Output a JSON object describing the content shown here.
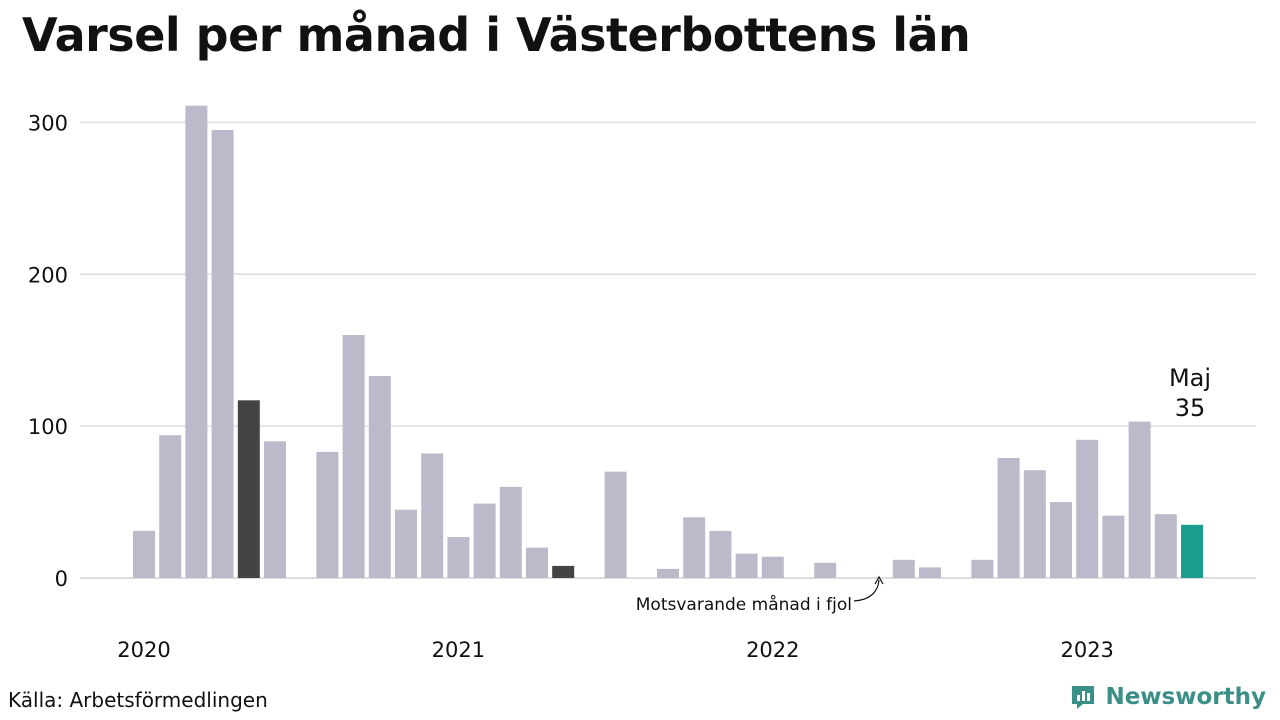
{
  "title": "Varsel per månad i Västerbottens län",
  "source": "Källa: Arbetsförmedlingen",
  "brand": {
    "name": "Newsworthy",
    "icon": "newsworthy-logo-icon",
    "color": "#3a8f86"
  },
  "annotation": "Motsvarande månad i fjol",
  "highlight": {
    "month": "Maj",
    "value": "35"
  },
  "colors": {
    "bar": "#bcbaca",
    "previous_year": "#444444",
    "current": "#1a9e8f",
    "grid": "#dddddd"
  },
  "chart_data": {
    "type": "bar",
    "ylim": [
      0,
      330
    ],
    "yticks": [
      0,
      100,
      200,
      300
    ],
    "year_labels": [
      {
        "label": "2020",
        "month_index": 0
      },
      {
        "label": "2021",
        "month_index": 12
      },
      {
        "label": "2022",
        "month_index": 24
      },
      {
        "label": "2023",
        "month_index": 36
      }
    ],
    "bars": [
      {
        "month_index": 0,
        "value": 31,
        "style": "normal"
      },
      {
        "month_index": 1,
        "value": 94,
        "style": "normal"
      },
      {
        "month_index": 2,
        "value": 311,
        "style": "normal"
      },
      {
        "month_index": 3,
        "value": 295,
        "style": "normal"
      },
      {
        "month_index": 4,
        "value": 117,
        "style": "previous_year"
      },
      {
        "month_index": 5,
        "value": 90,
        "style": "normal"
      },
      {
        "month_index": 7,
        "value": 83,
        "style": "normal"
      },
      {
        "month_index": 8,
        "value": 160,
        "style": "normal"
      },
      {
        "month_index": 9,
        "value": 133,
        "style": "normal"
      },
      {
        "month_index": 10,
        "value": 45,
        "style": "normal"
      },
      {
        "month_index": 11,
        "value": 82,
        "style": "normal"
      },
      {
        "month_index": 12,
        "value": 27,
        "style": "normal"
      },
      {
        "month_index": 13,
        "value": 49,
        "style": "normal"
      },
      {
        "month_index": 14,
        "value": 60,
        "style": "normal"
      },
      {
        "month_index": 15,
        "value": 20,
        "style": "normal"
      },
      {
        "month_index": 16,
        "value": 8,
        "style": "previous_year"
      },
      {
        "month_index": 18,
        "value": 70,
        "style": "normal"
      },
      {
        "month_index": 20,
        "value": 6,
        "style": "normal"
      },
      {
        "month_index": 21,
        "value": 40,
        "style": "normal"
      },
      {
        "month_index": 22,
        "value": 31,
        "style": "normal"
      },
      {
        "month_index": 23,
        "value": 16,
        "style": "normal"
      },
      {
        "month_index": 24,
        "value": 14,
        "style": "normal"
      },
      {
        "month_index": 26,
        "value": 10,
        "style": "normal"
      },
      {
        "month_index": 28,
        "value": 0,
        "style": "previous_year"
      },
      {
        "month_index": 29,
        "value": 12,
        "style": "normal"
      },
      {
        "month_index": 30,
        "value": 7,
        "style": "normal"
      },
      {
        "month_index": 32,
        "value": 12,
        "style": "normal"
      },
      {
        "month_index": 33,
        "value": 79,
        "style": "normal"
      },
      {
        "month_index": 34,
        "value": 71,
        "style": "normal"
      },
      {
        "month_index": 35,
        "value": 50,
        "style": "normal"
      },
      {
        "month_index": 36,
        "value": 91,
        "style": "normal"
      },
      {
        "month_index": 37,
        "value": 41,
        "style": "normal"
      },
      {
        "month_index": 38,
        "value": 103,
        "style": "normal"
      },
      {
        "month_index": 39,
        "value": 42,
        "style": "normal"
      },
      {
        "month_index": 40,
        "value": 35,
        "style": "current"
      }
    ]
  }
}
